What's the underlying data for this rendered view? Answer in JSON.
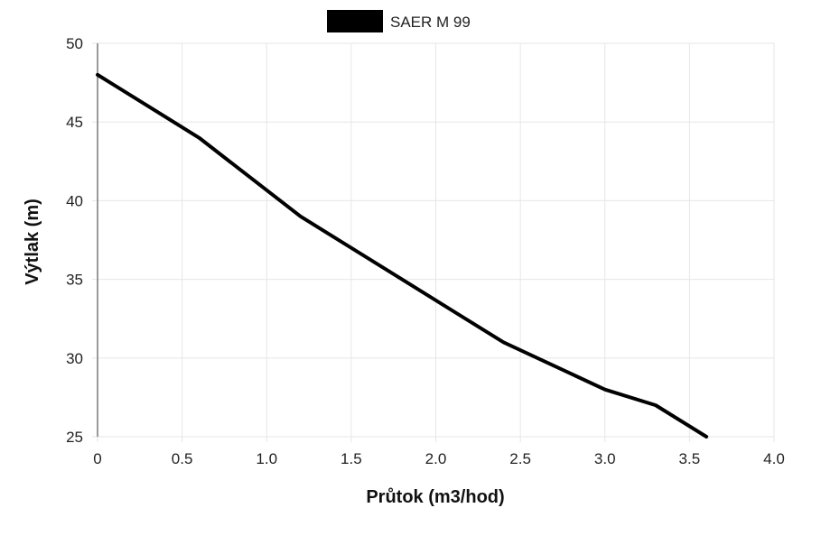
{
  "chart_data": {
    "type": "line",
    "xlabel": "Průtok (m3/hod)",
    "ylabel": "Výtlak (m)",
    "xlim": [
      0,
      4.0
    ],
    "ylim": [
      25,
      50
    ],
    "x_ticks": [
      "0",
      "0.5",
      "1.0",
      "1.5",
      "2.0",
      "2.5",
      "3.0",
      "3.5",
      "4.0"
    ],
    "y_ticks": [
      "25",
      "30",
      "35",
      "40",
      "45",
      "50"
    ],
    "grid": true,
    "legend_position": "top-center",
    "series": [
      {
        "name": "SAER M 99",
        "color": "#000000",
        "x": [
          0,
          0.6,
          1.2,
          1.8,
          2.4,
          3.0,
          3.3,
          3.6
        ],
        "y": [
          48,
          44,
          39,
          35,
          31,
          28,
          27,
          25
        ]
      }
    ]
  }
}
